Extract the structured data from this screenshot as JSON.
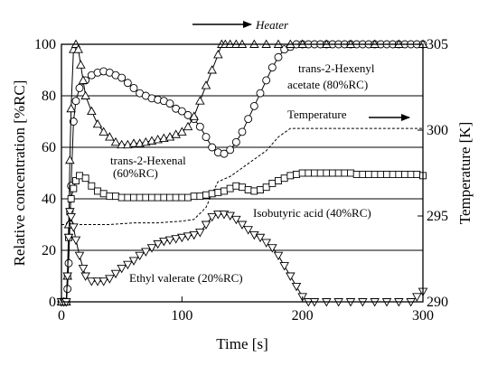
{
  "chart_data": {
    "type": "line",
    "xlabel": "Time [s]",
    "ylabel": "Relative concentration [%RC]",
    "y2label": "Temperature [K]",
    "xlim": [
      0,
      300
    ],
    "ylim": [
      0,
      100
    ],
    "y2lim": [
      290,
      305
    ],
    "xticks": [
      0,
      100,
      200,
      300
    ],
    "yticks": [
      0,
      20,
      40,
      60,
      80,
      100
    ],
    "y2ticks": [
      290,
      295,
      300,
      305
    ],
    "grid": "horizontal",
    "annotations": {
      "heater": "Heater",
      "hexenyl_line1": "trans-2-Hexenyl",
      "hexenyl_line2": "acetate (80%RC)",
      "temperature": "Temperature",
      "hexenal_line1": "trans-2-Hexenal",
      "hexenal_line2": "(60%RC)",
      "isobutyric": "Isobutyric acid (40%RC)",
      "ethyl": "Ethyl valerate (20%RC)"
    },
    "series": [
      {
        "name": "trans-2-Hexenyl acetate (80%RC)",
        "marker": "circle",
        "x": [
          0,
          2,
          4,
          5,
          6,
          7,
          8,
          10,
          12,
          15,
          20,
          25,
          30,
          35,
          40,
          45,
          50,
          55,
          60,
          65,
          70,
          75,
          80,
          85,
          90,
          95,
          100,
          105,
          110,
          115,
          120,
          125,
          130,
          135,
          140,
          145,
          150,
          155,
          160,
          165,
          170,
          175,
          180,
          185,
          190,
          195,
          200,
          205,
          210,
          215,
          220,
          225,
          230,
          235,
          240,
          245,
          250,
          255,
          260,
          265,
          270,
          275,
          280,
          285,
          290,
          295,
          300
        ],
        "values": [
          0,
          0,
          0,
          5,
          15,
          30,
          45,
          70,
          78,
          83,
          86,
          88,
          89,
          89.5,
          89,
          88,
          87,
          85,
          83,
          81,
          80,
          79,
          78.5,
          78,
          77,
          75,
          74,
          72.5,
          71,
          68,
          64,
          60,
          58,
          57.5,
          59,
          62,
          66,
          71,
          76,
          81,
          86,
          91,
          95,
          98,
          99,
          100,
          100,
          100,
          100,
          100,
          100,
          100,
          100,
          100,
          100,
          100,
          100,
          100,
          100,
          100,
          100,
          100,
          100,
          100,
          100,
          100,
          100
        ]
      },
      {
        "name": "trans-2-Hexenal (60%RC)",
        "marker": "triangle-up",
        "x": [
          0,
          2,
          4,
          5,
          6,
          7,
          8,
          10,
          12,
          14,
          16,
          18,
          20,
          25,
          30,
          35,
          40,
          45,
          50,
          55,
          60,
          65,
          70,
          75,
          80,
          85,
          90,
          95,
          100,
          105,
          110,
          115,
          120,
          125,
          130,
          133,
          136,
          140,
          145,
          150,
          160,
          170,
          180,
          190,
          200,
          220,
          240,
          260,
          280,
          300
        ],
        "values": [
          0,
          0,
          0,
          10,
          30,
          55,
          75,
          98,
          100,
          98,
          92,
          86,
          80,
          74,
          69,
          66,
          64,
          62,
          61,
          61,
          61.5,
          61.5,
          62,
          62.5,
          63,
          63.5,
          64,
          65,
          66,
          68,
          72,
          78,
          84,
          90,
          96,
          100,
          100,
          100,
          100,
          100,
          100,
          100,
          100,
          100,
          100,
          100,
          100,
          100,
          100,
          100
        ]
      },
      {
        "name": "Isobutyric acid (40%RC)",
        "marker": "square",
        "x": [
          0,
          2,
          4,
          5,
          6,
          7,
          8,
          10,
          12,
          15,
          20,
          25,
          30,
          35,
          40,
          45,
          50,
          55,
          60,
          65,
          70,
          75,
          80,
          85,
          90,
          95,
          100,
          105,
          110,
          115,
          120,
          125,
          130,
          135,
          140,
          145,
          150,
          155,
          160,
          165,
          170,
          175,
          180,
          185,
          190,
          195,
          200,
          205,
          210,
          215,
          220,
          225,
          230,
          235,
          240,
          245,
          250,
          255,
          260,
          265,
          270,
          275,
          280,
          285,
          290,
          295,
          300
        ],
        "values": [
          0,
          0,
          0,
          10,
          25,
          35,
          40,
          44,
          47,
          49,
          48,
          45,
          43,
          42,
          41,
          41,
          40.5,
          40.5,
          40.5,
          40.5,
          40.5,
          40.5,
          40.5,
          40.5,
          40.5,
          40.5,
          40.5,
          40.5,
          41,
          41,
          41.5,
          42,
          42.5,
          43,
          44,
          45,
          44.5,
          43.5,
          43,
          43.5,
          44.5,
          46,
          47,
          48,
          49,
          49.5,
          50,
          50,
          50,
          50,
          50,
          50,
          50,
          50,
          50,
          49.5,
          49.5,
          49.5,
          49.5,
          49.5,
          49.5,
          49.5,
          49.5,
          49.5,
          49.5,
          49.5,
          49
        ]
      },
      {
        "name": "Ethyl valerate (20%RC)",
        "marker": "triangle-down",
        "x": [
          0,
          2,
          4,
          5,
          6,
          7,
          8,
          10,
          12,
          15,
          18,
          20,
          25,
          30,
          35,
          40,
          45,
          50,
          55,
          60,
          65,
          70,
          75,
          80,
          85,
          90,
          95,
          100,
          105,
          110,
          115,
          120,
          125,
          130,
          135,
          140,
          145,
          150,
          155,
          160,
          165,
          170,
          175,
          180,
          185,
          190,
          195,
          200,
          205,
          210,
          220,
          230,
          240,
          250,
          260,
          270,
          280,
          290,
          295,
          300
        ],
        "values": [
          0,
          0,
          0,
          10,
          25,
          35,
          33,
          29,
          24,
          18,
          13,
          10,
          8,
          8,
          8,
          9,
          11,
          13,
          14.5,
          16,
          18,
          19.5,
          21,
          22.5,
          23.5,
          24,
          24.5,
          25,
          25.5,
          26,
          27,
          30,
          33,
          34,
          34,
          33.5,
          32,
          30,
          28,
          26,
          25,
          23,
          21,
          18,
          14,
          10,
          6,
          2,
          0,
          0,
          0,
          0,
          0,
          0,
          0,
          0,
          0,
          0,
          2,
          4
        ]
      },
      {
        "name": "Temperature",
        "axis": "right",
        "style": "dashed",
        "x": [
          0,
          10,
          20,
          40,
          60,
          80,
          100,
          110,
          120,
          125,
          130,
          140,
          150,
          160,
          170,
          180,
          190,
          200,
          220,
          240,
          260,
          280,
          300
        ],
        "values": [
          294.5,
          294.5,
          294.5,
          294.5,
          294.6,
          294.6,
          294.7,
          294.8,
          295.5,
          296.3,
          297,
          297.3,
          297.8,
          298.3,
          298.8,
          299.6,
          300.1,
          300.1,
          300.1,
          300.1,
          300.1,
          300.1,
          300.1
        ]
      }
    ]
  }
}
